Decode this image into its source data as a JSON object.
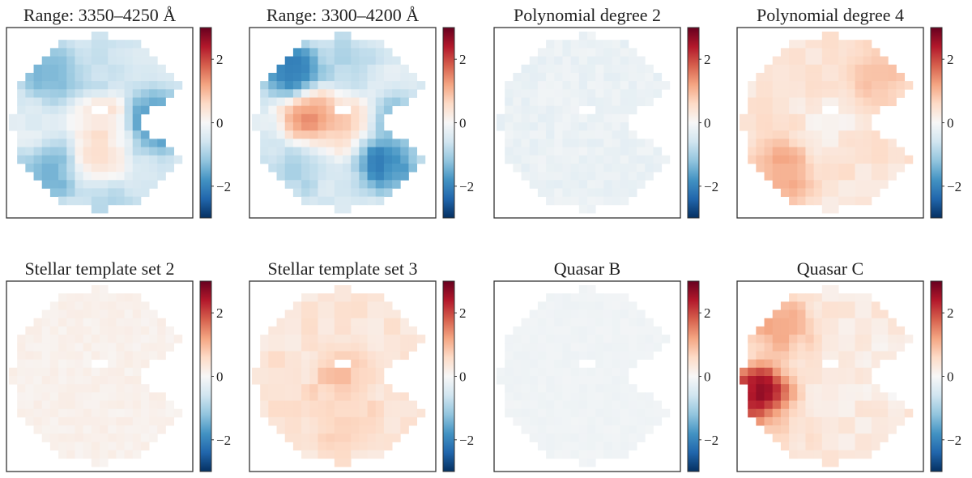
{
  "figure": {
    "description_type": "heatmap grid",
    "colormap": {
      "name": "RdBu_r",
      "vmin": -3,
      "vmax": 3,
      "stops": [
        "#053061",
        "#2166ac",
        "#4393c3",
        "#92c5de",
        "#d1e5f0",
        "#f7f7f7",
        "#fddbc7",
        "#f4a582",
        "#d6604d",
        "#b2182b",
        "#67001f"
      ]
    },
    "colorbar_ticks": [
      {
        "value": 2,
        "label": "2"
      },
      {
        "value": 0,
        "label": "0"
      },
      {
        "value": -2,
        "label": "−2"
      }
    ]
  },
  "chart_data": [
    {
      "type": "heatmap",
      "title": "Range: 3350–4250 Å",
      "colorbar_range": [
        -3,
        3
      ],
      "pattern": "regions",
      "base": -0.5,
      "regions": [
        {
          "area": "upper-left",
          "value": -1.6
        },
        {
          "area": "upper-mid",
          "value": -0.8
        },
        {
          "area": "left",
          "value": -0.3
        },
        {
          "area": "center",
          "value": 0.6
        },
        {
          "area": "right",
          "value": -2.1
        },
        {
          "area": "lower-left",
          "value": -1.6
        },
        {
          "area": "lower-mid",
          "value": 0.5
        },
        {
          "area": "bottom",
          "value": -0.9
        }
      ]
    },
    {
      "type": "heatmap",
      "title": "Range: 3300–4200 Å",
      "colorbar_range": [
        -3,
        3
      ],
      "pattern": "regions",
      "base": -0.4,
      "regions": [
        {
          "area": "upper-left",
          "value": -2.3
        },
        {
          "area": "upper-mid",
          "value": -0.9
        },
        {
          "area": "center-left",
          "value": 1.6
        },
        {
          "area": "center",
          "value": 0.9
        },
        {
          "area": "right",
          "value": -1.4
        },
        {
          "area": "lower-right",
          "value": -2.2
        },
        {
          "area": "lower-left",
          "value": -1.0
        },
        {
          "area": "bottom",
          "value": -0.5
        }
      ]
    },
    {
      "type": "heatmap",
      "title": "Polynomial degree 2",
      "colorbar_range": [
        -3,
        3
      ],
      "pattern": "uniform",
      "base": -0.2,
      "variation": 0.1
    },
    {
      "type": "heatmap",
      "title": "Polynomial degree 4",
      "colorbar_range": [
        -3,
        3
      ],
      "pattern": "regions",
      "base": 0.4,
      "regions": [
        {
          "area": "upper-right",
          "value": 0.9
        },
        {
          "area": "lower-left",
          "value": 1.2
        },
        {
          "area": "center",
          "value": 0.2
        }
      ]
    },
    {
      "type": "heatmap",
      "title": "Stellar template set 2",
      "colorbar_range": [
        -3,
        3
      ],
      "pattern": "uniform",
      "base": 0.15,
      "variation": 0.08
    },
    {
      "type": "heatmap",
      "title": "Stellar template set 3",
      "colorbar_range": [
        -3,
        3
      ],
      "pattern": "regions",
      "base": 0.4,
      "regions": [
        {
          "area": "center",
          "value": 0.9
        },
        {
          "area": "lower-mid",
          "value": 0.7
        }
      ]
    },
    {
      "type": "heatmap",
      "title": "Quasar B",
      "colorbar_range": [
        -3,
        3
      ],
      "pattern": "uniform",
      "base": -0.12,
      "variation": 0.04
    },
    {
      "type": "heatmap",
      "title": "Quasar C",
      "colorbar_range": [
        -3,
        3
      ],
      "pattern": "regions",
      "base": 0.3,
      "regions": [
        {
          "area": "far-left",
          "value": 3.0
        },
        {
          "area": "upper-left",
          "value": 1.2
        },
        {
          "area": "lower-left",
          "value": 0.6
        },
        {
          "area": "right",
          "value": 0.1
        }
      ]
    }
  ]
}
